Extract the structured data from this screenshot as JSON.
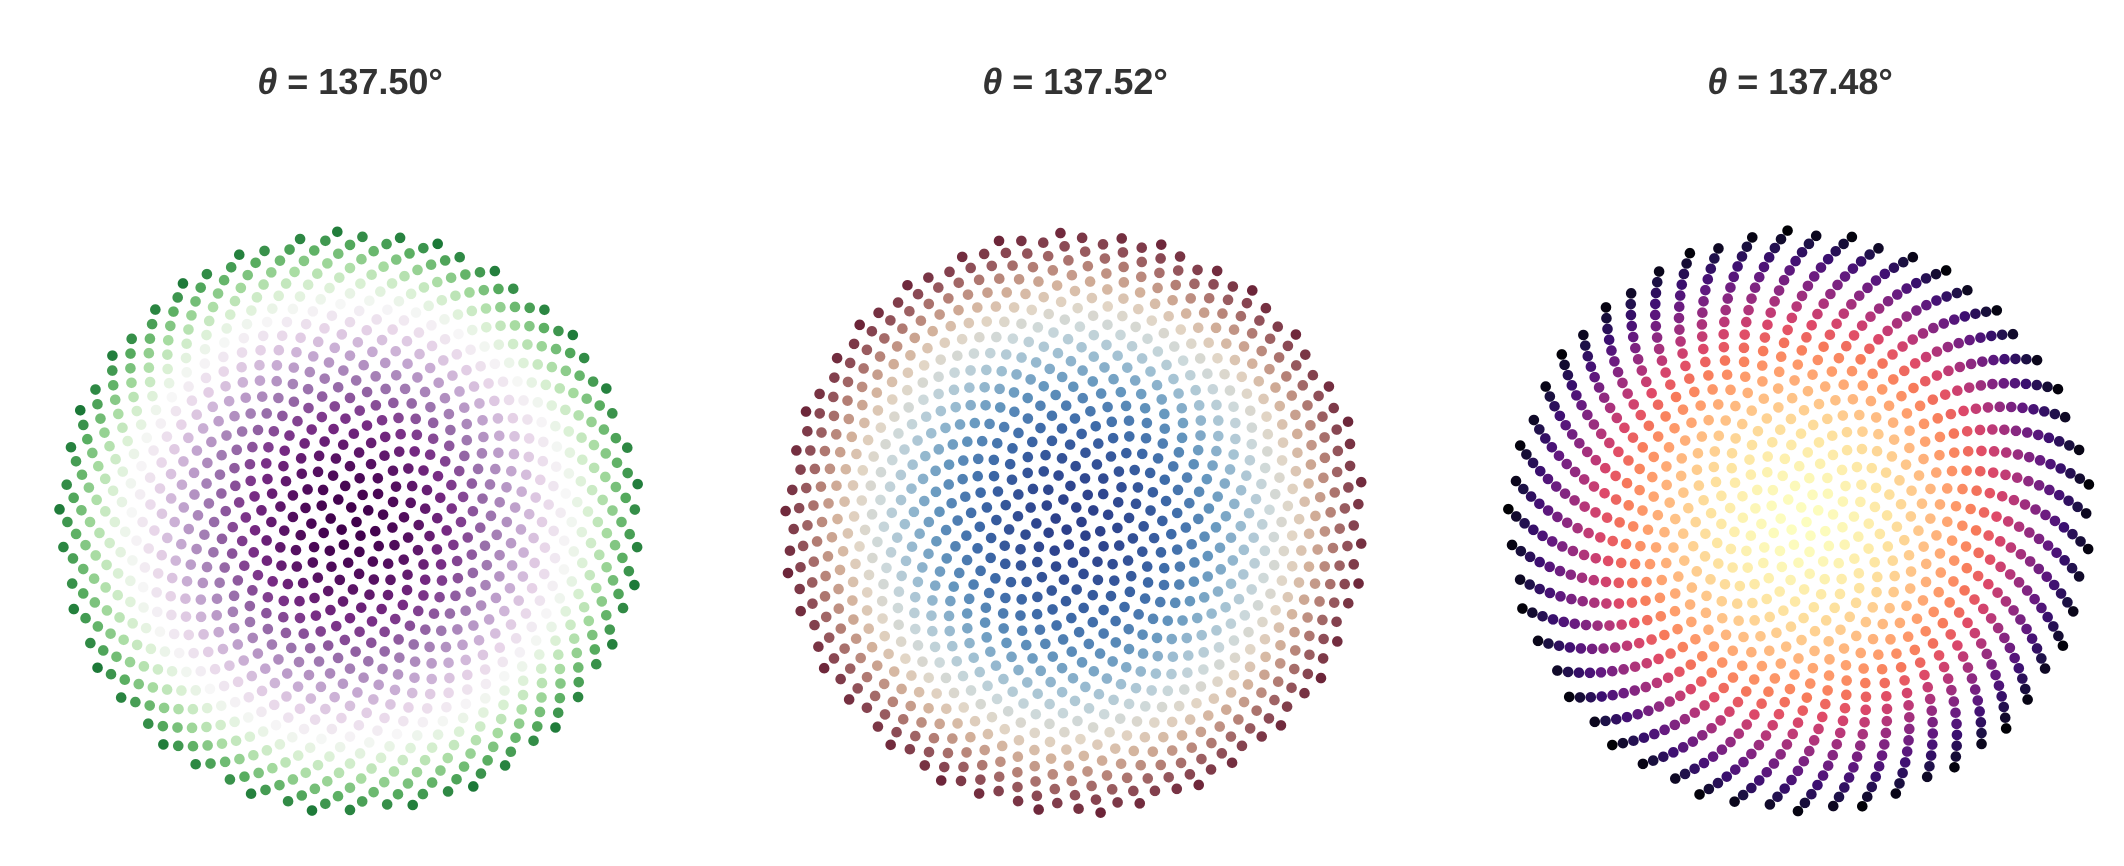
{
  "chart_data": [
    {
      "type": "scatter",
      "title_symbol": "θ",
      "title_value": "= 137.50°",
      "divergence_angle_deg": 137.5,
      "n_points": 1000,
      "colormap": "PRGn (purple center → green edge)",
      "colors": [
        "#40004b",
        "#762a83",
        "#9970ab",
        "#c2a5cf",
        "#e7d4e8",
        "#f7f7f7",
        "#d9f0d3",
        "#a6dba0",
        "#5aae61",
        "#1b7837"
      ],
      "grid": false,
      "axes_visible": false
    },
    {
      "type": "scatter",
      "title_symbol": "θ",
      "title_value": "= 137.52°",
      "divergence_angle_deg": 137.52,
      "n_points": 1000,
      "colormap": "twilight-like (blue center → maroon edge)",
      "colors": [
        "#2c3f8a",
        "#3d6aa8",
        "#6496be",
        "#9fbfd2",
        "#cdd9db",
        "#e2d6c6",
        "#d3b19b",
        "#b47f75",
        "#8d4c56",
        "#6b2438"
      ],
      "grid": false,
      "axes_visible": false
    },
    {
      "type": "scatter",
      "title_symbol": "θ",
      "title_value": "= 137.48°",
      "divergence_angle_deg": 137.48,
      "n_points": 1000,
      "colormap": "magma reversed (light center → black edge)",
      "colors": [
        "#fcfdbf",
        "#fde4a1",
        "#fec287",
        "#fe9f6d",
        "#f77a5a",
        "#de4968",
        "#b73779",
        "#8c2981",
        "#641a80",
        "#3b0f70",
        "#1d1147",
        "#000004"
      ],
      "grid": false,
      "axes_visible": false
    }
  ]
}
